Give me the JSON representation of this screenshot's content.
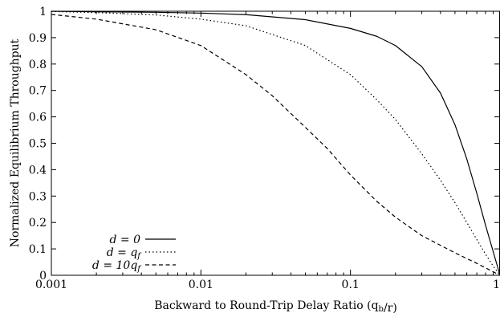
{
  "chart_data": {
    "type": "line",
    "title": "",
    "xlabel": "Backward to Round-Trip Delay Ratio (q_b/r)",
    "ylabel": "Normalized Equilibrium Throughput",
    "x_scale": "log",
    "xlim": [
      0.001,
      1
    ],
    "ylim": [
      0,
      1
    ],
    "xticks": [
      0.001,
      0.01,
      0.1,
      1
    ],
    "xtick_labels": [
      "0.001",
      "0.01",
      "0.1",
      "1"
    ],
    "yticks": [
      0,
      0.1,
      0.2,
      0.3,
      0.4,
      0.5,
      0.6,
      0.7,
      0.8,
      0.9,
      1
    ],
    "ytick_labels": [
      "0",
      "0.1",
      "0.2",
      "0.3",
      "0.4",
      "0.5",
      "0.6",
      "0.7",
      "0.8",
      "0.9",
      "1"
    ],
    "grid": false,
    "legend_position": "bottom-left",
    "series": [
      {
        "name": "d = 0",
        "style": "solid",
        "x": [
          0.001,
          0.002,
          0.005,
          0.01,
          0.02,
          0.05,
          0.1,
          0.15,
          0.2,
          0.3,
          0.4,
          0.5,
          0.6,
          0.7,
          0.8,
          0.9,
          1
        ],
        "values": [
          1.0,
          0.998,
          0.996,
          0.993,
          0.987,
          0.968,
          0.935,
          0.905,
          0.87,
          0.79,
          0.69,
          0.57,
          0.44,
          0.31,
          0.19,
          0.09,
          0.0
        ]
      },
      {
        "name": "d = q_f",
        "style": "dotted",
        "x": [
          0.001,
          0.002,
          0.005,
          0.01,
          0.02,
          0.05,
          0.1,
          0.15,
          0.2,
          0.3,
          0.4,
          0.5,
          0.6,
          0.7,
          0.8,
          0.9,
          1
        ],
        "values": [
          0.999,
          0.995,
          0.986,
          0.97,
          0.945,
          0.87,
          0.76,
          0.665,
          0.59,
          0.46,
          0.36,
          0.275,
          0.2,
          0.135,
          0.08,
          0.035,
          0.0
        ]
      },
      {
        "name": "d = 10q_f",
        "style": "dashed",
        "x": [
          0.001,
          0.002,
          0.005,
          0.01,
          0.02,
          0.03,
          0.05,
          0.07,
          0.1,
          0.15,
          0.2,
          0.3,
          0.5,
          0.7,
          1
        ],
        "values": [
          0.988,
          0.97,
          0.93,
          0.87,
          0.76,
          0.68,
          0.56,
          0.48,
          0.38,
          0.28,
          0.22,
          0.15,
          0.085,
          0.045,
          0.0
        ]
      }
    ]
  }
}
